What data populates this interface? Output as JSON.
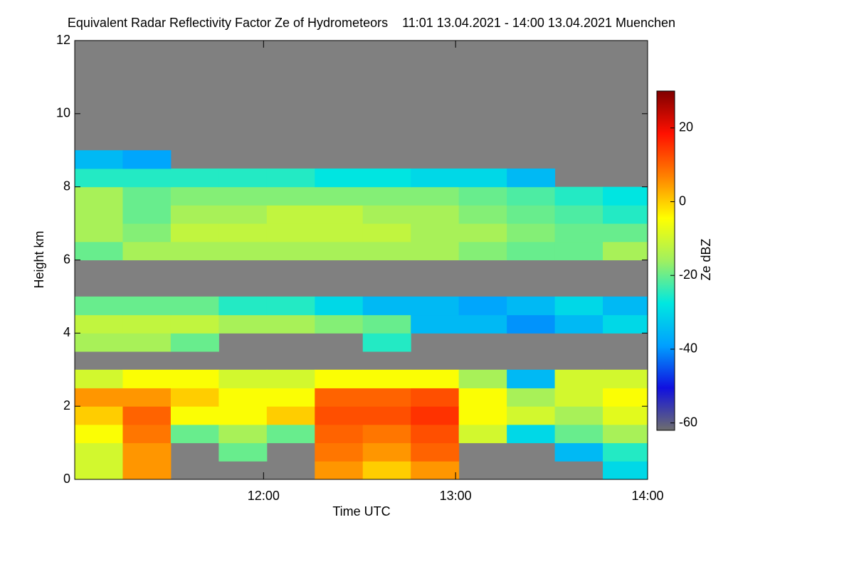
{
  "chart_data": {
    "type": "heatmap",
    "title": "Equivalent Radar Reflectivity Factor Ze of Hydrometeors    11:01 13.04.2021 - 14:00 13.04.2021 Muenchen",
    "xlabel": "Time UTC",
    "ylabel": "Height km",
    "colorbar_label": "Ze dBZ",
    "xlim": [
      661,
      840
    ],
    "xticks": [
      {
        "value": 720,
        "label": "12:00"
      },
      {
        "value": 780,
        "label": "13:00"
      },
      {
        "value": 840,
        "label": "14:00"
      }
    ],
    "ylim": [
      0,
      12
    ],
    "yticks": [
      0,
      2,
      4,
      6,
      8,
      10,
      12
    ],
    "clim": [
      -62,
      30
    ],
    "cticks": [
      -60,
      -40,
      -20,
      0,
      20
    ],
    "colors": [
      "#6e6e6e",
      "#1010e0",
      "#00a0ff",
      "#00e8e0",
      "#a0f060",
      "#ffff00",
      "#ff8000",
      "#ff1000",
      "#800000"
    ],
    "nodata_color": "#808080",
    "x_bins": [
      661,
      676,
      691,
      706,
      721,
      736,
      751,
      766,
      781,
      796,
      811,
      826,
      841
    ],
    "y_bins": [
      0,
      0.5,
      1,
      1.5,
      2,
      2.5,
      3,
      3.5,
      4,
      4.5,
      5,
      5.5,
      6,
      6.5,
      7,
      7.5,
      8,
      8.5,
      9
    ],
    "z": [
      [
        -10,
        5,
        null,
        null,
        null,
        5,
        0,
        5,
        null,
        null,
        null,
        -30
      ],
      [
        -10,
        5,
        null,
        -20,
        null,
        8,
        5,
        10,
        null,
        null,
        -35,
        -25
      ],
      [
        -5,
        8,
        -20,
        -15,
        -20,
        10,
        8,
        12,
        -10,
        -30,
        -20,
        -15
      ],
      [
        0,
        10,
        -5,
        -5,
        0,
        12,
        12,
        15,
        -5,
        -10,
        -15,
        -8
      ],
      [
        5,
        5,
        0,
        -5,
        -5,
        10,
        10,
        12,
        -5,
        -15,
        -10,
        -5
      ],
      [
        -10,
        -5,
        -5,
        -10,
        -10,
        -5,
        -5,
        -5,
        -15,
        -35,
        -10,
        -10
      ],
      [
        null,
        null,
        null,
        null,
        null,
        null,
        null,
        null,
        null,
        null,
        null,
        null
      ],
      [
        -15,
        -15,
        -20,
        null,
        null,
        null,
        -25,
        null,
        null,
        null,
        null,
        null
      ],
      [
        -12,
        -12,
        -12,
        -15,
        -15,
        -18,
        -20,
        -35,
        -35,
        -40,
        -35,
        -30
      ],
      [
        -20,
        -20,
        -20,
        -25,
        -25,
        -30,
        -35,
        -35,
        -38,
        -35,
        -30,
        -35
      ],
      [
        null,
        null,
        null,
        null,
        null,
        null,
        null,
        null,
        null,
        null,
        null,
        null
      ],
      [
        null,
        null,
        null,
        null,
        null,
        null,
        null,
        null,
        null,
        null,
        null,
        null
      ],
      [
        -20,
        -15,
        -15,
        -15,
        -15,
        -15,
        -15,
        -15,
        -18,
        -20,
        -20,
        -15
      ],
      [
        -15,
        -18,
        -12,
        -12,
        -12,
        -12,
        -12,
        -15,
        -15,
        -18,
        -20,
        -20
      ],
      [
        -15,
        -20,
        -15,
        -15,
        -12,
        -12,
        -15,
        -15,
        -18,
        -20,
        -22,
        -25
      ],
      [
        -15,
        -20,
        -18,
        -18,
        -18,
        -18,
        -18,
        -18,
        -20,
        -22,
        -25,
        -28
      ],
      [
        -25,
        -25,
        -25,
        -25,
        -25,
        -28,
        -28,
        -30,
        -30,
        -35,
        null,
        null
      ],
      [
        -35,
        -38,
        null,
        null,
        null,
        null,
        null,
        null,
        null,
        null,
        null,
        null
      ]
    ]
  }
}
